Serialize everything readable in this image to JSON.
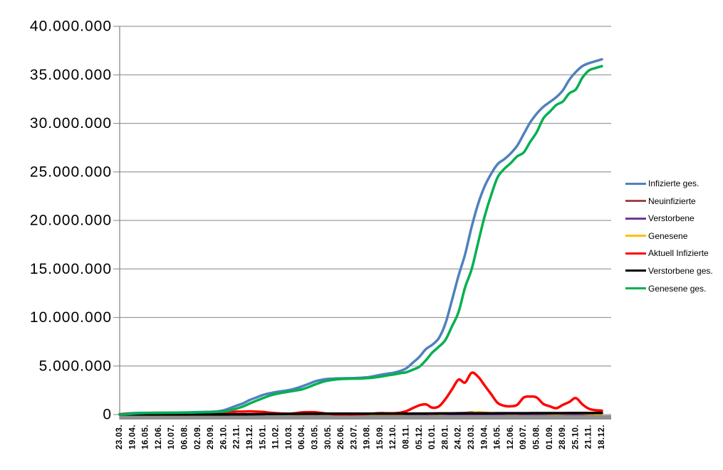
{
  "chart_data": {
    "type": "line",
    "title": "",
    "xlabel": "",
    "ylabel": "",
    "values_unit": "millions of persons",
    "x_note": "daily COVID-19 time series 23.03.2020 - 18.12.2022, axis labeled every 27 days; series values sampled at 75 evenly spaced points",
    "ylim": [
      0,
      40000000
    ],
    "grid": "horizontal",
    "legend_position": "right",
    "y_tick_values_millions": [
      0,
      5,
      10,
      15,
      20,
      25,
      30,
      35,
      40
    ],
    "y_tick_labels": [
      "0",
      "5.000.000",
      "10.000.000",
      "15.000.000",
      "20.000.000",
      "25.000.000",
      "30.000.000",
      "35.000.000",
      "40.000.000"
    ],
    "x_tick_labels": [
      "23.03.",
      "19.04.",
      "16.05.",
      "12.06.",
      "10.07.",
      "06.08.",
      "02.09.",
      "29.09.",
      "26.10.",
      "22.11.",
      "19.12.",
      "15.01.",
      "11.02.",
      "10.03.",
      "06.04.",
      "03.05.",
      "30.05.",
      "26.06.",
      "23.07.",
      "19.08.",
      "15.09.",
      "12.10.",
      "08.11.",
      "05.12.",
      "01.01.",
      "28.01.",
      "24.02.",
      "23.03.",
      "19.04.",
      "16.05.",
      "12.06.",
      "09.07.",
      "05.08.",
      "01.09.",
      "28.09.",
      "25.10.",
      "21.11.",
      "18.12."
    ],
    "series": [
      {
        "name": "Infizierte ges.",
        "color": "#4F81BD",
        "width": 3.5,
        "values": [
          0.03,
          0.095,
          0.143,
          0.162,
          0.175,
          0.181,
          0.187,
          0.192,
          0.199,
          0.204,
          0.213,
          0.228,
          0.247,
          0.265,
          0.289,
          0.325,
          0.437,
          0.672,
          0.93,
          1.17,
          1.51,
          1.76,
          2.02,
          2.19,
          2.32,
          2.42,
          2.52,
          2.69,
          2.91,
          3.16,
          3.42,
          3.58,
          3.68,
          3.71,
          3.73,
          3.74,
          3.76,
          3.79,
          3.84,
          3.95,
          4.09,
          4.2,
          4.3,
          4.48,
          4.77,
          5.35,
          5.95,
          6.75,
          7.2,
          7.9,
          9.4,
          11.8,
          14.3,
          16.5,
          19.3,
          21.7,
          23.5,
          24.8,
          25.8,
          26.3,
          26.9,
          27.7,
          28.9,
          30.1,
          31.0,
          31.7,
          32.2,
          32.7,
          33.4,
          34.5,
          35.3,
          35.9,
          36.2,
          36.4,
          36.6
        ]
      },
      {
        "name": "Neuinfizierte",
        "color": "#A04448",
        "width": 2,
        "values": [
          0.004,
          0.006,
          0.002,
          0.0015,
          0.0006,
          0.0005,
          0.0003,
          0.0005,
          0.0003,
          0.0006,
          0.001,
          0.0014,
          0.0013,
          0.0018,
          0.002,
          0.004,
          0.011,
          0.019,
          0.018,
          0.022,
          0.025,
          0.018,
          0.014,
          0.012,
          0.008,
          0.008,
          0.009,
          0.015,
          0.016,
          0.021,
          0.018,
          0.008,
          0.006,
          0.002,
          0.001,
          0.0008,
          0.0013,
          0.003,
          0.005,
          0.008,
          0.008,
          0.007,
          0.008,
          0.015,
          0.034,
          0.053,
          0.064,
          0.045,
          0.026,
          0.06,
          0.09,
          0.16,
          0.19,
          0.21,
          0.27,
          0.2,
          0.16,
          0.09,
          0.06,
          0.04,
          0.04,
          0.08,
          0.1,
          0.09,
          0.08,
          0.05,
          0.03,
          0.04,
          0.08,
          0.1,
          0.09,
          0.04,
          0.02,
          0.015,
          0.015
        ]
      },
      {
        "name": "Verstorbene",
        "color": "#6F3A96",
        "width": 2,
        "values": [
          0.0001,
          0.0015,
          0.0015,
          0.001,
          0.0006,
          0.0004,
          0.0003,
          0.0002,
          0.0002,
          0.0001,
          0.0001,
          0.0002,
          0.0002,
          0.0002,
          0.0002,
          0.0003,
          0.0005,
          0.001,
          0.002,
          0.004,
          0.005,
          0.006,
          0.006,
          0.005,
          0.004,
          0.003,
          0.002,
          0.002,
          0.002,
          0.002,
          0.002,
          0.002,
          0.001,
          0.001,
          0.0005,
          0.0003,
          0.0002,
          0.0002,
          0.0003,
          0.0004,
          0.0005,
          0.0005,
          0.0006,
          0.001,
          0.001,
          0.002,
          0.003,
          0.003,
          0.003,
          0.002,
          0.002,
          0.002,
          0.002,
          0.002,
          0.002,
          0.002,
          0.002,
          0.001,
          0.001,
          0.001,
          0.0008,
          0.0008,
          0.001,
          0.001,
          0.001,
          0.001,
          0.0008,
          0.0008,
          0.001,
          0.001,
          0.001,
          0.001,
          0.0008,
          0.0006,
          0.0005
        ]
      },
      {
        "name": "Genesene",
        "color": "#FFC000",
        "width": 2,
        "values": [
          0.002,
          0.004,
          0.004,
          0.003,
          0.0015,
          0.0009,
          0.0005,
          0.0004,
          0.0004,
          0.0004,
          0.0007,
          0.001,
          0.0011,
          0.0013,
          0.0015,
          0.002,
          0.005,
          0.011,
          0.014,
          0.018,
          0.021,
          0.02,
          0.018,
          0.016,
          0.012,
          0.009,
          0.008,
          0.011,
          0.013,
          0.017,
          0.019,
          0.015,
          0.011,
          0.005,
          0.002,
          0.001,
          0.001,
          0.002,
          0.003,
          0.005,
          0.007,
          0.008,
          0.007,
          0.009,
          0.018,
          0.033,
          0.046,
          0.052,
          0.042,
          0.04,
          0.06,
          0.1,
          0.15,
          0.2,
          0.22,
          0.28,
          0.25,
          0.18,
          0.12,
          0.07,
          0.05,
          0.06,
          0.08,
          0.1,
          0.09,
          0.07,
          0.05,
          0.04,
          0.06,
          0.08,
          0.09,
          0.07,
          0.04,
          0.02,
          0.015
        ]
      },
      {
        "name": "Aktuell Infizierte",
        "color": "#FF0000",
        "width": 3.5,
        "values": [
          0.027,
          0.061,
          0.053,
          0.03,
          0.015,
          0.008,
          0.006,
          0.005,
          0.006,
          0.005,
          0.008,
          0.013,
          0.017,
          0.02,
          0.026,
          0.033,
          0.11,
          0.22,
          0.3,
          0.3,
          0.33,
          0.3,
          0.27,
          0.19,
          0.14,
          0.1,
          0.087,
          0.14,
          0.23,
          0.25,
          0.24,
          0.16,
          0.09,
          0.02,
          0.02,
          0.015,
          0.015,
          0.04,
          0.06,
          0.1,
          0.15,
          0.13,
          0.13,
          0.18,
          0.35,
          0.67,
          0.95,
          1.05,
          0.7,
          0.85,
          1.6,
          2.6,
          3.6,
          3.3,
          4.3,
          3.9,
          3.0,
          2.1,
          1.2,
          0.9,
          0.85,
          1.0,
          1.75,
          1.85,
          1.75,
          1.1,
          0.85,
          0.65,
          1.0,
          1.3,
          1.7,
          1.05,
          0.6,
          0.45,
          0.4
        ]
      },
      {
        "name": "Verstorbene ges.",
        "color": "#000000",
        "width": 3.5,
        "values": [
          0.0002,
          0.0016,
          0.0045,
          0.0065,
          0.0078,
          0.0084,
          0.0088,
          0.009,
          0.0091,
          0.0091,
          0.0092,
          0.0093,
          0.0093,
          0.0094,
          0.0095,
          0.0097,
          0.01,
          0.012,
          0.014,
          0.019,
          0.026,
          0.034,
          0.046,
          0.055,
          0.064,
          0.069,
          0.072,
          0.075,
          0.077,
          0.08,
          0.083,
          0.086,
          0.088,
          0.089,
          0.09,
          0.091,
          0.091,
          0.092,
          0.092,
          0.093,
          0.093,
          0.094,
          0.094,
          0.095,
          0.097,
          0.099,
          0.101,
          0.105,
          0.112,
          0.114,
          0.117,
          0.119,
          0.122,
          0.124,
          0.127,
          0.13,
          0.133,
          0.135,
          0.137,
          0.139,
          0.14,
          0.141,
          0.142,
          0.143,
          0.144,
          0.145,
          0.147,
          0.148,
          0.15,
          0.151,
          0.153,
          0.154,
          0.156,
          0.158,
          0.16
        ]
      },
      {
        "name": "Genesene ges.",
        "color": "#00B050",
        "width": 3.5,
        "values": [
          0.002,
          0.03,
          0.085,
          0.125,
          0.152,
          0.165,
          0.172,
          0.178,
          0.184,
          0.19,
          0.196,
          0.206,
          0.221,
          0.236,
          0.254,
          0.282,
          0.317,
          0.44,
          0.62,
          0.85,
          1.15,
          1.43,
          1.69,
          1.94,
          2.12,
          2.25,
          2.36,
          2.47,
          2.6,
          2.83,
          3.1,
          3.33,
          3.5,
          3.6,
          3.66,
          3.68,
          3.7,
          3.71,
          3.75,
          3.81,
          3.9,
          4.02,
          4.12,
          4.25,
          4.36,
          4.62,
          4.93,
          5.6,
          6.4,
          7.0,
          7.7,
          9.1,
          10.55,
          13.1,
          14.95,
          17.7,
          20.4,
          22.6,
          24.45,
          25.3,
          25.9,
          26.6,
          27.0,
          28.1,
          29.1,
          30.5,
          31.2,
          31.9,
          32.25,
          33.1,
          33.5,
          34.7,
          35.45,
          35.7,
          35.9
        ]
      }
    ]
  },
  "style_colors": {
    "background": "#FFFFFF",
    "gridline": "#9C9C9C",
    "axis_line": "#808080",
    "axis_bar": "#909090",
    "tick_text": "#000000"
  }
}
